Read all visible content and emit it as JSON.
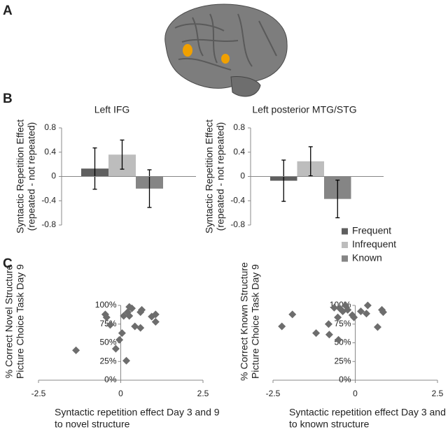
{
  "panels": [
    "A",
    "B",
    "C"
  ],
  "legend": [
    {
      "name": "Frequent",
      "color": "#5f5f5f"
    },
    {
      "name": "Infrequent",
      "color": "#bdbdbd"
    },
    {
      "name": "Known",
      "color": "#858585"
    }
  ],
  "chart_data": [
    {
      "type": "bar",
      "title": "Left IFG",
      "ylabel": [
        "Syntactic Repetition Effect",
        "(repeated - not repeated)"
      ],
      "values": [
        0.13,
        0.36,
        -0.2
      ],
      "errors": [
        0.34,
        0.24,
        0.31
      ],
      "ylim": [
        -0.8,
        0.8
      ],
      "yticks": [
        0.8,
        0.4,
        0,
        -0.4,
        -0.8
      ]
    },
    {
      "type": "bar",
      "title": "Left posterior MTG/STG",
      "ylabel": [
        "Syntactic Repetition Effect",
        "(repeated - not repeated)"
      ],
      "values": [
        -0.07,
        0.25,
        -0.37
      ],
      "errors": [
        0.34,
        0.24,
        0.31
      ],
      "ylim": [
        -0.8,
        0.8
      ],
      "yticks": [
        0.8,
        0.4,
        0,
        -0.4,
        -0.8
      ]
    },
    {
      "type": "scatter",
      "color": "#6d6d6d",
      "ylabel": [
        "% Correct Novel Structure",
        "Picture Choice Task Day 9"
      ],
      "xlabel": [
        "Syntactic repetition effect Day 3 and 9",
        "to novel structure"
      ],
      "x": [
        -1.36,
        -0.47,
        -0.43,
        -0.32,
        -0.15,
        -0.04,
        0.04,
        0.09,
        0.17,
        0.21,
        0.26,
        0.26,
        0.34,
        0.43,
        0.6,
        0.6,
        0.64,
        0.94,
        1.06,
        1.06
      ],
      "values": [
        40,
        88,
        84,
        74,
        42,
        54,
        63,
        86,
        26,
        91,
        98,
        86,
        96,
        72,
        91,
        70,
        94,
        85,
        88,
        78
      ],
      "xlim": [
        -2.5,
        2.5
      ],
      "xticks": [
        -2.5,
        0,
        2.5
      ],
      "ylim": [
        0,
        100
      ],
      "yticks": [
        {
          "value": 0,
          "label": "0%"
        },
        {
          "value": 25,
          "label": "25%"
        },
        {
          "value": 50,
          "label": "50%"
        },
        {
          "value": 75,
          "label": "75%"
        },
        {
          "value": 100,
          "label": "100%"
        }
      ]
    },
    {
      "type": "scatter",
      "color": "#6d6d6d",
      "ylabel": [
        "% Correct Known Structure",
        "Picture Choice Task Day 9"
      ],
      "xlabel": [
        "Syntactic repetition effect Day 3 and 9",
        "to known structure"
      ],
      "x": [
        -2.23,
        -1.91,
        -1.19,
        -0.81,
        -0.79,
        -0.64,
        -0.53,
        -0.51,
        -0.47,
        -0.38,
        -0.3,
        -0.23,
        -0.09,
        -0.04,
        0.17,
        0.34,
        0.38,
        0.68,
        0.81,
        0.85
      ],
      "values": [
        72,
        88,
        63,
        75,
        61,
        97,
        84,
        54,
        96,
        92,
        100,
        94,
        87,
        84,
        92,
        89,
        100,
        71,
        94,
        91
      ],
      "xlim": [
        -2.5,
        2.5
      ],
      "xticks": [
        -2.5,
        0,
        2.5
      ],
      "ylim": [
        0,
        100
      ],
      "yticks": [
        {
          "value": 0,
          "label": "0%"
        },
        {
          "value": 25,
          "label": "25%"
        },
        {
          "value": 50,
          "label": "50%"
        },
        {
          "value": 75,
          "label": "75%"
        },
        {
          "value": 100,
          "label": "100%"
        }
      ]
    }
  ]
}
